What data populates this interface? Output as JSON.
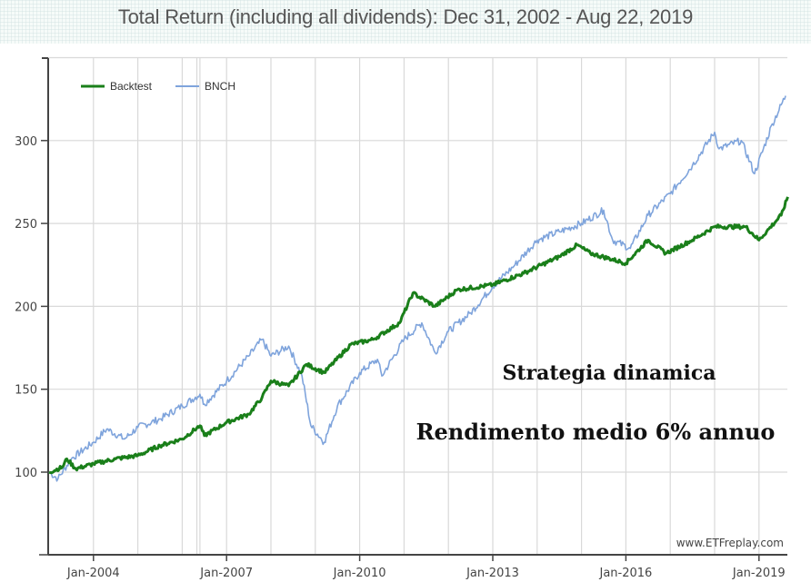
{
  "header": {
    "title": "Total Return (including all dividends): Dec 31, 2002 - Aug 22, 2019"
  },
  "legend": [
    {
      "name": "Backtest",
      "color": "#1a7f1a"
    },
    {
      "name": "BNCH",
      "color": "#7fa4dc"
    }
  ],
  "annotations": {
    "line1": "Strategia dinamica",
    "line2": "Rendimento medio 6% annuo"
  },
  "watermark": "www.ETFreplay.com",
  "chart_data": {
    "type": "line",
    "title": "Total Return (including all dividends): Dec 31, 2002 - Aug 22, 2019",
    "xlabel": "",
    "ylabel": "",
    "ylim": [
      50,
      350
    ],
    "xlim": [
      2003.0,
      2019.65
    ],
    "y_ticks": [
      100,
      150,
      200,
      250,
      300
    ],
    "x_ticks": [
      {
        "label": "Jan-2004",
        "x": 2004.0
      },
      {
        "label": "Jan-2007",
        "x": 2007.0
      },
      {
        "label": "Jan-2010",
        "x": 2010.0
      },
      {
        "label": "Jan-2013",
        "x": 2013.0
      },
      {
        "label": "Jan-2016",
        "x": 2016.0
      },
      {
        "label": "Jan-2019",
        "x": 2019.0
      }
    ],
    "grid": true,
    "legend_position": "top-left",
    "series": [
      {
        "name": "Backtest",
        "color": "#1a7f1a",
        "x": [
          2003.0,
          2003.3,
          2003.4,
          2003.6,
          2004.0,
          2004.5,
          2005.0,
          2005.5,
          2006.0,
          2006.4,
          2006.5,
          2007.0,
          2007.5,
          2007.8,
          2008.0,
          2008.4,
          2008.8,
          2009.2,
          2009.8,
          2010.3,
          2010.9,
          2011.2,
          2011.7,
          2012.2,
          2013.0,
          2013.7,
          2014.5,
          2014.9,
          2015.2,
          2016.0,
          2016.5,
          2016.9,
          2017.5,
          2018.0,
          2018.7,
          2019.0,
          2019.5,
          2019.65
        ],
        "values": [
          100,
          103,
          108,
          102,
          105,
          108,
          110,
          116,
          120,
          128,
          122,
          130,
          135,
          145,
          155,
          152,
          165,
          160,
          177,
          180,
          190,
          208,
          200,
          210,
          213,
          220,
          230,
          237,
          232,
          226,
          240,
          232,
          240,
          248,
          248,
          240,
          255,
          266
        ]
      },
      {
        "name": "BNCH",
        "color": "#7fa4dc",
        "x": [
          2003.0,
          2003.2,
          2003.5,
          2004.0,
          2004.3,
          2004.7,
          2005.0,
          2005.5,
          2006.0,
          2006.4,
          2006.5,
          2007.0,
          2007.5,
          2007.8,
          2008.0,
          2008.4,
          2008.7,
          2008.9,
          2009.2,
          2009.5,
          2010.0,
          2010.4,
          2010.5,
          2011.0,
          2011.4,
          2011.7,
          2012.0,
          2012.5,
          2013.0,
          2013.5,
          2014.0,
          2014.5,
          2015.0,
          2015.5,
          2015.7,
          2016.1,
          2016.5,
          2017.0,
          2017.5,
          2018.0,
          2018.1,
          2018.6,
          2018.9,
          2019.3,
          2019.6
        ],
        "values": [
          100,
          96,
          108,
          118,
          126,
          120,
          127,
          132,
          140,
          147,
          141,
          155,
          170,
          180,
          170,
          176,
          158,
          128,
          118,
          140,
          160,
          168,
          158,
          180,
          190,
          172,
          185,
          196,
          212,
          225,
          240,
          245,
          250,
          258,
          240,
          235,
          255,
          268,
          285,
          305,
          295,
          300,
          280,
          310,
          327
        ]
      }
    ]
  }
}
